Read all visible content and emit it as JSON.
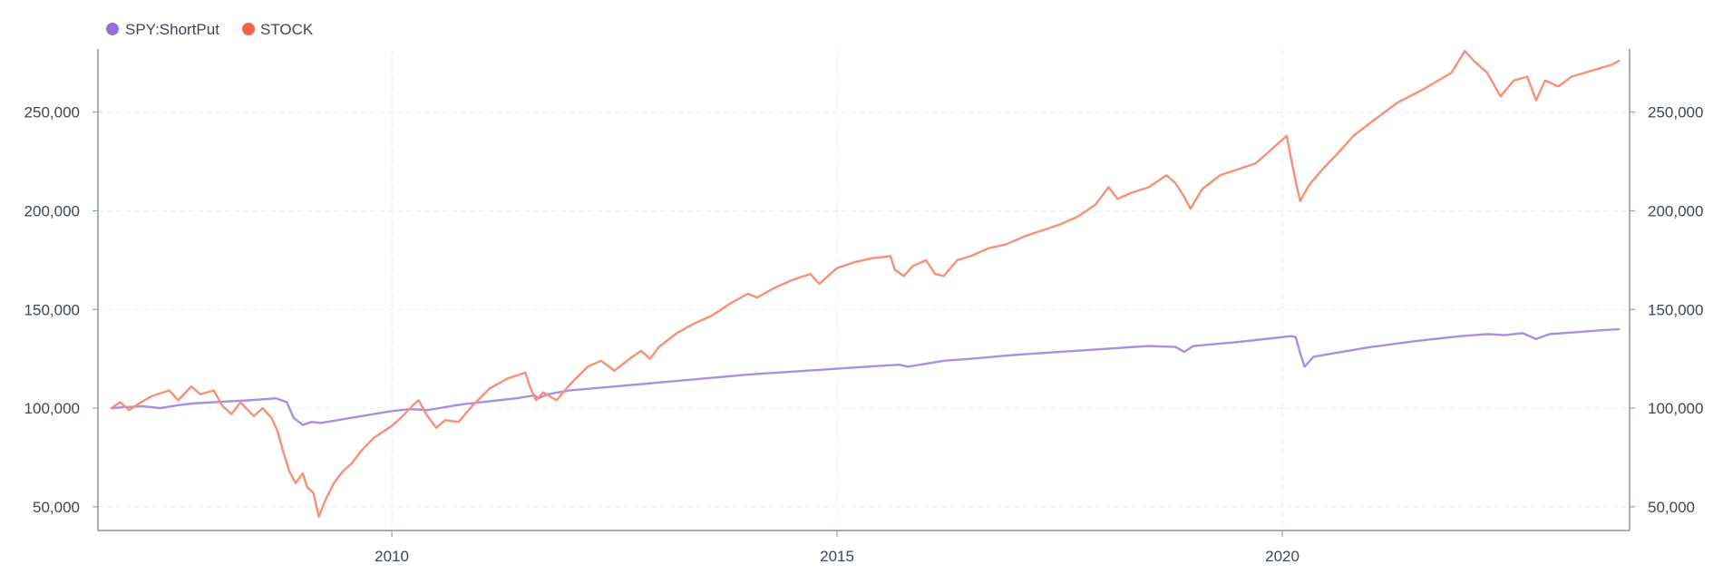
{
  "chart_data": {
    "type": "line",
    "title": "",
    "xlabel": "",
    "ylabel": "",
    "grid": true,
    "legend_position": "top-left",
    "x_range": [
      2006.7,
      2023.9
    ],
    "y_range": [
      38000,
      282000
    ],
    "x_ticks": [
      {
        "value": 2010,
        "label": "2010"
      },
      {
        "value": 2015,
        "label": "2015"
      },
      {
        "value": 2020,
        "label": "2020"
      }
    ],
    "y_ticks": [
      {
        "value": 50000,
        "label": "50,000"
      },
      {
        "value": 100000,
        "label": "100,000"
      },
      {
        "value": 150000,
        "label": "150,000"
      },
      {
        "value": 200000,
        "label": "200,000"
      },
      {
        "value": 250000,
        "label": "250,000"
      }
    ],
    "series": [
      {
        "name": "SPY:ShortPut",
        "color": "#a98ee6",
        "legend_color": "#9370db",
        "points": [
          [
            2006.85,
            100000
          ],
          [
            2007.0,
            100500
          ],
          [
            2007.2,
            101000
          ],
          [
            2007.4,
            100000
          ],
          [
            2007.6,
            101500
          ],
          [
            2007.8,
            102500
          ],
          [
            2008.0,
            103000
          ],
          [
            2008.2,
            103500
          ],
          [
            2008.4,
            104000
          ],
          [
            2008.55,
            104500
          ],
          [
            2008.7,
            105000
          ],
          [
            2008.82,
            103000
          ],
          [
            2008.9,
            95000
          ],
          [
            2009.0,
            91500
          ],
          [
            2009.1,
            93000
          ],
          [
            2009.2,
            92500
          ],
          [
            2009.4,
            94000
          ],
          [
            2009.6,
            95500
          ],
          [
            2009.8,
            97000
          ],
          [
            2010.0,
            98500
          ],
          [
            2010.2,
            99500
          ],
          [
            2010.4,
            99000
          ],
          [
            2010.6,
            100500
          ],
          [
            2010.8,
            102000
          ],
          [
            2011.0,
            103000
          ],
          [
            2011.2,
            104000
          ],
          [
            2011.4,
            105000
          ],
          [
            2011.6,
            106500
          ],
          [
            2011.65,
            105000
          ],
          [
            2011.75,
            107000
          ],
          [
            2012.0,
            109000
          ],
          [
            2012.5,
            111000
          ],
          [
            2013.0,
            113000
          ],
          [
            2013.5,
            115000
          ],
          [
            2014.0,
            117000
          ],
          [
            2014.5,
            118500
          ],
          [
            2015.0,
            120000
          ],
          [
            2015.5,
            121500
          ],
          [
            2015.7,
            122000
          ],
          [
            2015.8,
            121000
          ],
          [
            2016.0,
            122500
          ],
          [
            2016.2,
            124000
          ],
          [
            2016.5,
            125000
          ],
          [
            2017.0,
            127000
          ],
          [
            2017.5,
            128500
          ],
          [
            2018.0,
            130000
          ],
          [
            2018.5,
            131500
          ],
          [
            2018.8,
            131000
          ],
          [
            2018.9,
            128500
          ],
          [
            2019.0,
            131500
          ],
          [
            2019.5,
            133500
          ],
          [
            2020.0,
            136000
          ],
          [
            2020.1,
            136500
          ],
          [
            2020.15,
            136000
          ],
          [
            2020.2,
            128000
          ],
          [
            2020.25,
            121000
          ],
          [
            2020.35,
            126000
          ],
          [
            2020.6,
            128000
          ],
          [
            2021.0,
            131000
          ],
          [
            2021.5,
            134000
          ],
          [
            2022.0,
            136500
          ],
          [
            2022.3,
            137500
          ],
          [
            2022.5,
            137000
          ],
          [
            2022.7,
            138000
          ],
          [
            2022.85,
            135000
          ],
          [
            2023.0,
            137500
          ],
          [
            2023.3,
            138500
          ],
          [
            2023.6,
            139500
          ],
          [
            2023.78,
            140000
          ]
        ]
      },
      {
        "name": "STOCK",
        "color": "#f79077",
        "legend_color": "#ff6347",
        "points": [
          [
            2006.85,
            100000
          ],
          [
            2006.95,
            103000
          ],
          [
            2007.05,
            99000
          ],
          [
            2007.15,
            102000
          ],
          [
            2007.3,
            106000
          ],
          [
            2007.5,
            109000
          ],
          [
            2007.6,
            104000
          ],
          [
            2007.75,
            111000
          ],
          [
            2007.85,
            107000
          ],
          [
            2008.0,
            109000
          ],
          [
            2008.1,
            101000
          ],
          [
            2008.2,
            97000
          ],
          [
            2008.3,
            103000
          ],
          [
            2008.45,
            96000
          ],
          [
            2008.55,
            100000
          ],
          [
            2008.65,
            95000
          ],
          [
            2008.72,
            88000
          ],
          [
            2008.78,
            78000
          ],
          [
            2008.85,
            68000
          ],
          [
            2008.92,
            62000
          ],
          [
            2009.0,
            67000
          ],
          [
            2009.05,
            60000
          ],
          [
            2009.12,
            57000
          ],
          [
            2009.18,
            45000
          ],
          [
            2009.25,
            53000
          ],
          [
            2009.35,
            62000
          ],
          [
            2009.45,
            68000
          ],
          [
            2009.55,
            72000
          ],
          [
            2009.65,
            78000
          ],
          [
            2009.8,
            85000
          ],
          [
            2010.0,
            91000
          ],
          [
            2010.1,
            95000
          ],
          [
            2010.25,
            102000
          ],
          [
            2010.3,
            104000
          ],
          [
            2010.4,
            96000
          ],
          [
            2010.5,
            90000
          ],
          [
            2010.6,
            94000
          ],
          [
            2010.75,
            93000
          ],
          [
            2010.9,
            101000
          ],
          [
            2011.1,
            110000
          ],
          [
            2011.3,
            115000
          ],
          [
            2011.5,
            118000
          ],
          [
            2011.55,
            111000
          ],
          [
            2011.62,
            104000
          ],
          [
            2011.7,
            108000
          ],
          [
            2011.85,
            104000
          ],
          [
            2012.0,
            112000
          ],
          [
            2012.2,
            121000
          ],
          [
            2012.35,
            124000
          ],
          [
            2012.5,
            119000
          ],
          [
            2012.7,
            126000
          ],
          [
            2012.8,
            129000
          ],
          [
            2012.9,
            125000
          ],
          [
            2013.0,
            131000
          ],
          [
            2013.2,
            138000
          ],
          [
            2013.4,
            143000
          ],
          [
            2013.6,
            147000
          ],
          [
            2013.8,
            153000
          ],
          [
            2014.0,
            158000
          ],
          [
            2014.1,
            156000
          ],
          [
            2014.3,
            161000
          ],
          [
            2014.5,
            165000
          ],
          [
            2014.7,
            168000
          ],
          [
            2014.8,
            163000
          ],
          [
            2015.0,
            171000
          ],
          [
            2015.2,
            174000
          ],
          [
            2015.4,
            176000
          ],
          [
            2015.6,
            177000
          ],
          [
            2015.65,
            170000
          ],
          [
            2015.75,
            167000
          ],
          [
            2015.85,
            172000
          ],
          [
            2016.0,
            175000
          ],
          [
            2016.1,
            168000
          ],
          [
            2016.2,
            167000
          ],
          [
            2016.35,
            175000
          ],
          [
            2016.5,
            177000
          ],
          [
            2016.7,
            181000
          ],
          [
            2016.9,
            183000
          ],
          [
            2017.1,
            187000
          ],
          [
            2017.3,
            190000
          ],
          [
            2017.5,
            193000
          ],
          [
            2017.7,
            197000
          ],
          [
            2017.9,
            203000
          ],
          [
            2018.05,
            212000
          ],
          [
            2018.15,
            206000
          ],
          [
            2018.3,
            209000
          ],
          [
            2018.5,
            212000
          ],
          [
            2018.7,
            218000
          ],
          [
            2018.8,
            214000
          ],
          [
            2018.9,
            207000
          ],
          [
            2018.97,
            201000
          ],
          [
            2019.1,
            211000
          ],
          [
            2019.3,
            218000
          ],
          [
            2019.5,
            221000
          ],
          [
            2019.7,
            224000
          ],
          [
            2019.9,
            232000
          ],
          [
            2020.05,
            238000
          ],
          [
            2020.1,
            226000
          ],
          [
            2020.15,
            215000
          ],
          [
            2020.2,
            205000
          ],
          [
            2020.3,
            213000
          ],
          [
            2020.45,
            221000
          ],
          [
            2020.6,
            228000
          ],
          [
            2020.8,
            238000
          ],
          [
            2021.0,
            245000
          ],
          [
            2021.3,
            255000
          ],
          [
            2021.6,
            262000
          ],
          [
            2021.9,
            270000
          ],
          [
            2022.05,
            281000
          ],
          [
            2022.15,
            276000
          ],
          [
            2022.3,
            270000
          ],
          [
            2022.45,
            258000
          ],
          [
            2022.6,
            266000
          ],
          [
            2022.75,
            268000
          ],
          [
            2022.85,
            256000
          ],
          [
            2022.95,
            266000
          ],
          [
            2023.1,
            263000
          ],
          [
            2023.25,
            268000
          ],
          [
            2023.4,
            270000
          ],
          [
            2023.55,
            272000
          ],
          [
            2023.7,
            274000
          ],
          [
            2023.78,
            276000
          ]
        ]
      }
    ]
  }
}
